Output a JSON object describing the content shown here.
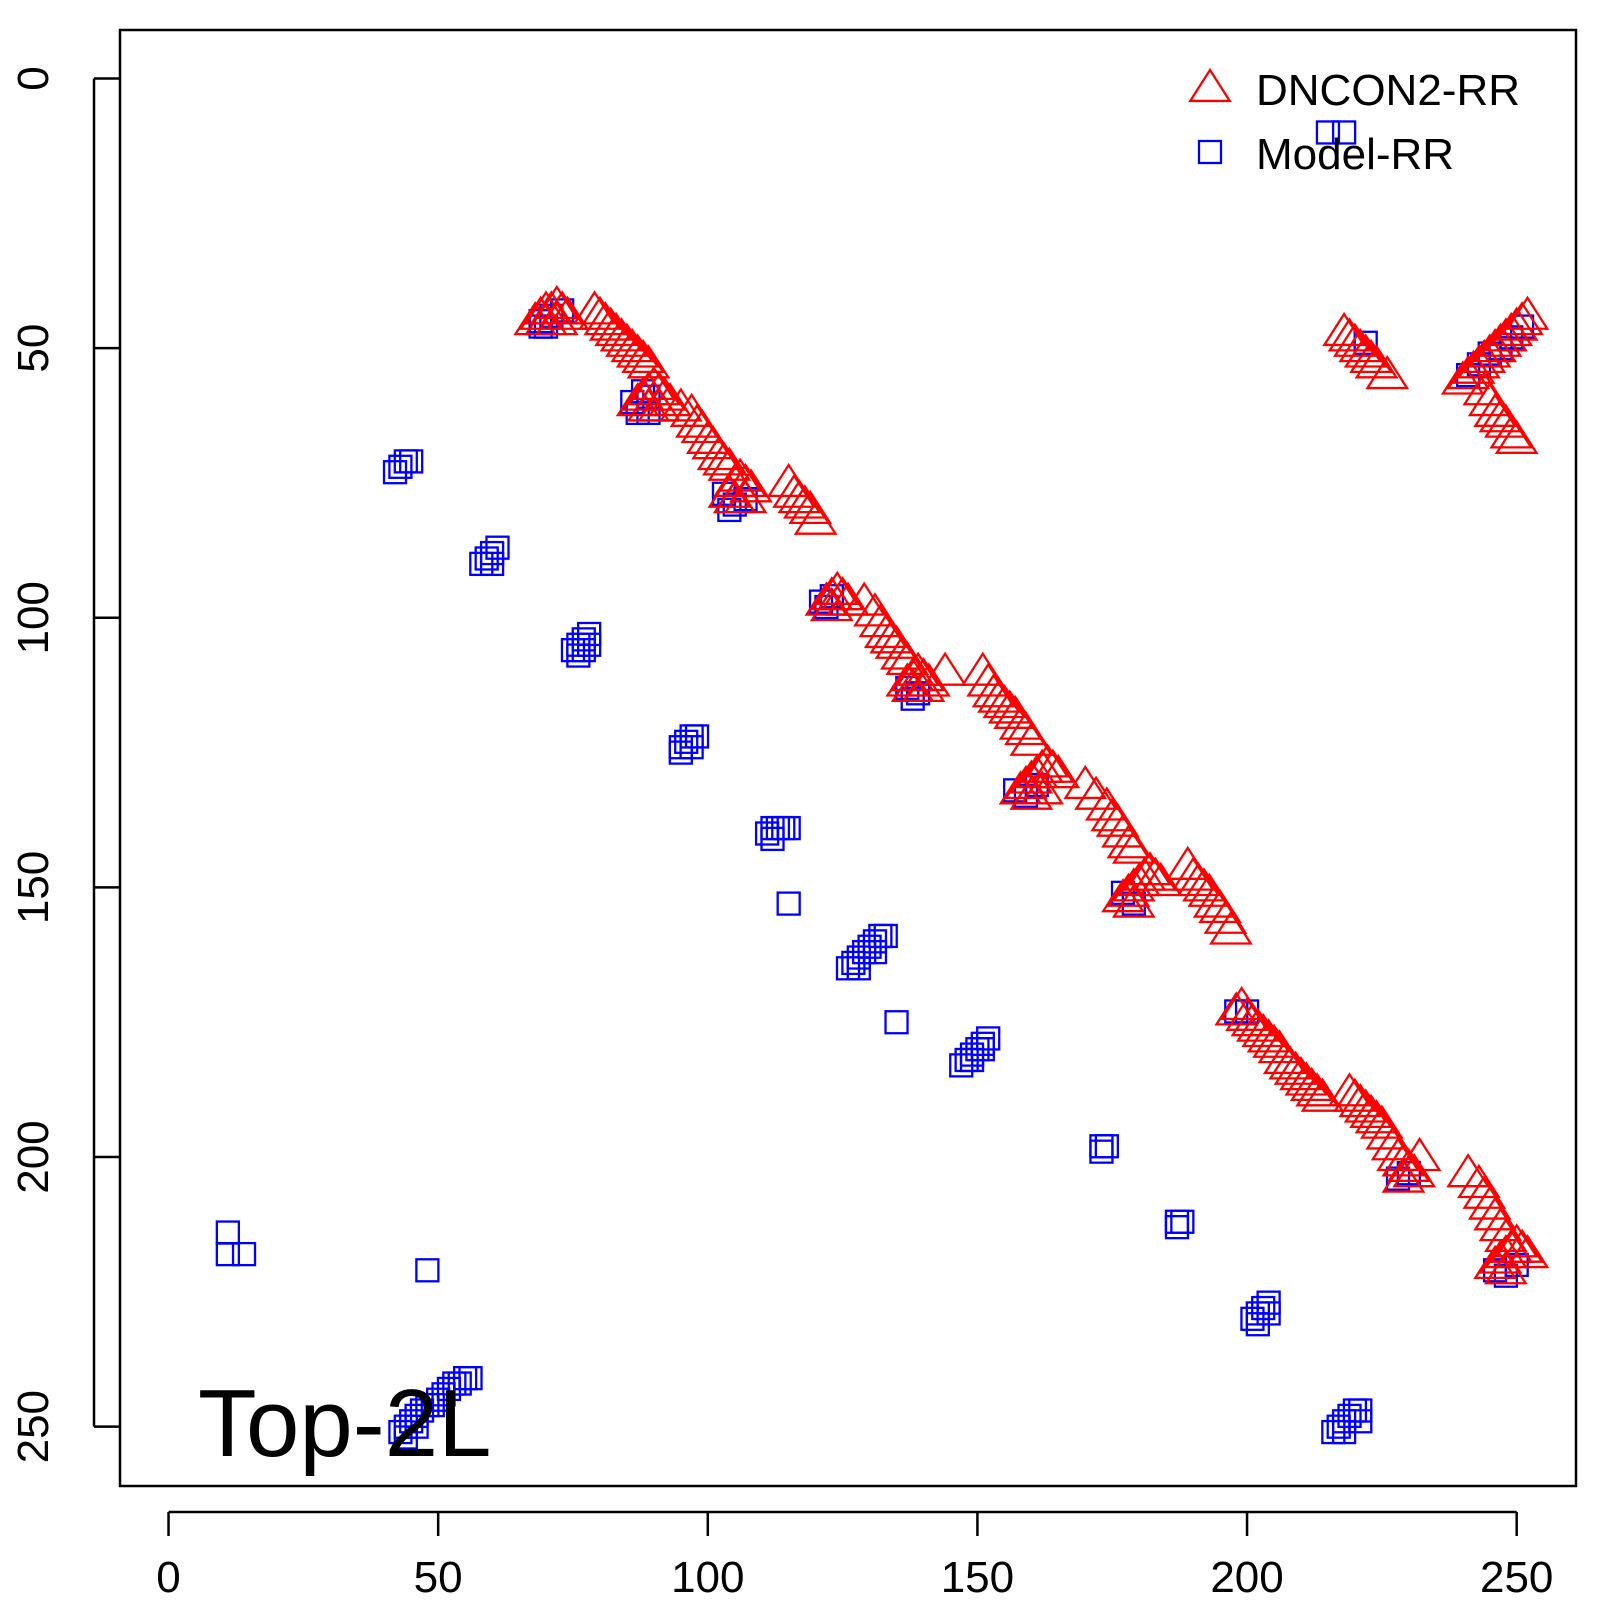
{
  "chart_data": {
    "type": "scatter",
    "title": "",
    "xlabel": "",
    "ylabel": "",
    "xlim": [
      -9,
      261
    ],
    "ylim": [
      -9,
      261
    ],
    "y_reversed": true,
    "xticks": [
      0,
      50,
      100,
      150,
      200,
      250
    ],
    "yticks": [
      0,
      50,
      100,
      150,
      200,
      250
    ],
    "annotation": "Top-2L",
    "legend": {
      "position": "top-right"
    },
    "series": [
      {
        "name": "DNCON2-RR",
        "marker": "triangle",
        "color": "#ff0000",
        "points": [
          [
            68,
            45
          ],
          [
            69,
            44
          ],
          [
            70,
            43
          ],
          [
            71,
            43
          ],
          [
            72,
            42
          ],
          [
            73,
            43
          ],
          [
            74,
            44
          ],
          [
            70,
            45
          ],
          [
            72,
            45
          ],
          [
            79,
            43
          ],
          [
            80,
            44
          ],
          [
            81,
            45
          ],
          [
            82,
            46
          ],
          [
            83,
            47
          ],
          [
            84,
            48
          ],
          [
            85,
            49
          ],
          [
            86,
            50
          ],
          [
            87,
            51
          ],
          [
            88,
            52
          ],
          [
            89,
            53
          ],
          [
            87,
            60
          ],
          [
            88,
            59
          ],
          [
            89,
            58
          ],
          [
            90,
            57
          ],
          [
            91,
            58
          ],
          [
            92,
            59
          ],
          [
            93,
            60
          ],
          [
            89,
            61
          ],
          [
            91,
            61
          ],
          [
            95,
            61
          ],
          [
            97,
            62
          ],
          [
            98,
            64
          ],
          [
            99,
            65
          ],
          [
            100,
            67
          ],
          [
            101,
            68
          ],
          [
            102,
            70
          ],
          [
            103,
            71
          ],
          [
            104,
            72
          ],
          [
            104,
            77
          ],
          [
            105,
            75
          ],
          [
            106,
            74
          ],
          [
            107,
            75
          ],
          [
            108,
            76
          ],
          [
            105,
            78
          ],
          [
            107,
            78
          ],
          [
            115,
            75
          ],
          [
            116,
            77
          ],
          [
            117,
            78
          ],
          [
            118,
            79
          ],
          [
            119,
            80
          ],
          [
            120,
            82
          ],
          [
            122,
            97
          ],
          [
            123,
            96
          ],
          [
            124,
            95
          ],
          [
            125,
            96
          ],
          [
            126,
            97
          ],
          [
            123,
            98
          ],
          [
            129,
            97
          ],
          [
            131,
            99
          ],
          [
            132,
            101
          ],
          [
            133,
            103
          ],
          [
            134,
            104
          ],
          [
            135,
            105
          ],
          [
            136,
            107
          ],
          [
            137,
            108
          ],
          [
            137,
            112
          ],
          [
            138,
            111
          ],
          [
            139,
            110
          ],
          [
            140,
            111
          ],
          [
            141,
            112
          ],
          [
            138,
            113
          ],
          [
            140,
            113
          ],
          [
            144,
            110
          ],
          [
            151,
            110
          ],
          [
            152,
            112
          ],
          [
            153,
            114
          ],
          [
            154,
            115
          ],
          [
            155,
            116
          ],
          [
            156,
            117
          ],
          [
            157,
            118
          ],
          [
            158,
            120
          ],
          [
            159,
            121
          ],
          [
            160,
            123
          ],
          [
            158,
            132
          ],
          [
            159,
            131
          ],
          [
            160,
            130
          ],
          [
            161,
            129
          ],
          [
            162,
            128
          ],
          [
            163,
            127
          ],
          [
            164,
            128
          ],
          [
            165,
            129
          ],
          [
            160,
            133
          ],
          [
            162,
            132
          ],
          [
            170,
            131
          ],
          [
            172,
            133
          ],
          [
            174,
            135
          ],
          [
            175,
            137
          ],
          [
            176,
            138
          ],
          [
            177,
            140
          ],
          [
            178,
            142
          ],
          [
            179,
            143
          ],
          [
            177,
            152
          ],
          [
            178,
            151
          ],
          [
            179,
            150
          ],
          [
            180,
            149
          ],
          [
            181,
            148
          ],
          [
            182,
            147
          ],
          [
            183,
            148
          ],
          [
            184,
            149
          ],
          [
            179,
            153
          ],
          [
            189,
            146
          ],
          [
            190,
            148
          ],
          [
            191,
            149
          ],
          [
            192,
            150
          ],
          [
            193,
            151
          ],
          [
            194,
            153
          ],
          [
            195,
            154
          ],
          [
            196,
            156
          ],
          [
            197,
            158
          ],
          [
            198,
            173
          ],
          [
            199,
            172
          ],
          [
            200,
            174
          ],
          [
            201,
            175
          ],
          [
            202,
            176
          ],
          [
            203,
            177
          ],
          [
            204,
            178
          ],
          [
            205,
            179
          ],
          [
            206,
            180
          ],
          [
            207,
            182
          ],
          [
            208,
            183
          ],
          [
            209,
            184
          ],
          [
            210,
            185
          ],
          [
            211,
            186
          ],
          [
            212,
            187
          ],
          [
            213,
            188
          ],
          [
            214,
            189
          ],
          [
            219,
            188
          ],
          [
            220,
            189
          ],
          [
            221,
            190
          ],
          [
            222,
            191
          ],
          [
            223,
            192
          ],
          [
            224,
            193
          ],
          [
            225,
            194
          ],
          [
            226,
            196
          ],
          [
            227,
            198
          ],
          [
            228,
            200
          ],
          [
            229,
            201
          ],
          [
            230,
            202
          ],
          [
            231,
            203
          ],
          [
            229,
            204
          ],
          [
            232,
            200
          ],
          [
            241,
            203
          ],
          [
            243,
            205
          ],
          [
            244,
            207
          ],
          [
            245,
            209
          ],
          [
            246,
            211
          ],
          [
            247,
            213
          ],
          [
            248,
            215
          ],
          [
            249,
            217
          ],
          [
            246,
            220
          ],
          [
            247,
            219
          ],
          [
            248,
            218
          ],
          [
            249,
            217
          ],
          [
            250,
            216
          ],
          [
            251,
            217
          ],
          [
            252,
            218
          ],
          [
            248,
            221
          ],
          [
            218,
            47
          ],
          [
            219,
            48
          ],
          [
            220,
            49
          ],
          [
            221,
            50
          ],
          [
            222,
            51
          ],
          [
            223,
            52
          ],
          [
            224,
            53
          ],
          [
            226,
            55
          ],
          [
            240,
            56
          ],
          [
            241,
            55
          ],
          [
            242,
            54
          ],
          [
            243,
            53
          ],
          [
            244,
            52
          ],
          [
            245,
            51
          ],
          [
            246,
            50
          ],
          [
            247,
            49
          ],
          [
            248,
            48
          ],
          [
            249,
            47
          ],
          [
            250,
            46
          ],
          [
            251,
            45
          ],
          [
            252,
            44
          ],
          [
            244,
            58
          ],
          [
            245,
            60
          ],
          [
            246,
            62
          ],
          [
            247,
            63
          ],
          [
            248,
            64
          ],
          [
            249,
            66
          ],
          [
            250,
            67
          ]
        ]
      },
      {
        "name": "Model-RR",
        "marker": "square",
        "color": "#0000ff",
        "points": [
          [
            69,
            45
          ],
          [
            71,
            44
          ],
          [
            73,
            43
          ],
          [
            70,
            46
          ],
          [
            86,
            60
          ],
          [
            88,
            58
          ],
          [
            87,
            62
          ],
          [
            89,
            62
          ],
          [
            103,
            77
          ],
          [
            105,
            79
          ],
          [
            107,
            78
          ],
          [
            104,
            80
          ],
          [
            43,
            72
          ],
          [
            42,
            73
          ],
          [
            44,
            71
          ],
          [
            45,
            71
          ],
          [
            59,
            89
          ],
          [
            60,
            88
          ],
          [
            61,
            87
          ],
          [
            58,
            90
          ],
          [
            60,
            90
          ],
          [
            75,
            106
          ],
          [
            76,
            105
          ],
          [
            77,
            104
          ],
          [
            78,
            103
          ],
          [
            76,
            107
          ],
          [
            77,
            106
          ],
          [
            78,
            105
          ],
          [
            95,
            124
          ],
          [
            96,
            123
          ],
          [
            97,
            122
          ],
          [
            95,
            125
          ],
          [
            97,
            124
          ],
          [
            98,
            122
          ],
          [
            111,
            140
          ],
          [
            112,
            139
          ],
          [
            113,
            139
          ],
          [
            114,
            139
          ],
          [
            112,
            141
          ],
          [
            115,
            139
          ],
          [
            115,
            153
          ],
          [
            126,
            165
          ],
          [
            127,
            164
          ],
          [
            128,
            163
          ],
          [
            129,
            162
          ],
          [
            130,
            161
          ],
          [
            131,
            160
          ],
          [
            132,
            159
          ],
          [
            133,
            159
          ],
          [
            128,
            165
          ],
          [
            131,
            162
          ],
          [
            135,
            175
          ],
          [
            147,
            183
          ],
          [
            148,
            182
          ],
          [
            149,
            181
          ],
          [
            150,
            180
          ],
          [
            151,
            179
          ],
          [
            152,
            178
          ],
          [
            151,
            180
          ],
          [
            149,
            182
          ],
          [
            173,
            198
          ],
          [
            174,
            198
          ],
          [
            173,
            199
          ],
          [
            187,
            212
          ],
          [
            188,
            212
          ],
          [
            187,
            213
          ],
          [
            201,
            230
          ],
          [
            202,
            229
          ],
          [
            203,
            228
          ],
          [
            204,
            227
          ],
          [
            202,
            231
          ],
          [
            204,
            229
          ],
          [
            216,
            251
          ],
          [
            217,
            250
          ],
          [
            218,
            249
          ],
          [
            219,
            248
          ],
          [
            220,
            247
          ],
          [
            221,
            247
          ],
          [
            218,
            251
          ],
          [
            221,
            249
          ],
          [
            11,
            214
          ],
          [
            11,
            218
          ],
          [
            14,
            218
          ],
          [
            48,
            221
          ],
          [
            43,
            251
          ],
          [
            44,
            250
          ],
          [
            45,
            249
          ],
          [
            46,
            248
          ],
          [
            47,
            247
          ],
          [
            48,
            246
          ],
          [
            49,
            246
          ],
          [
            50,
            245
          ],
          [
            51,
            244
          ],
          [
            52,
            243
          ],
          [
            53,
            242
          ],
          [
            54,
            242
          ],
          [
            55,
            241
          ],
          [
            56,
            241
          ],
          [
            44,
            252
          ],
          [
            46,
            250
          ],
          [
            121,
            97
          ],
          [
            123,
            96
          ],
          [
            122,
            98
          ],
          [
            137,
            113
          ],
          [
            139,
            114
          ],
          [
            138,
            115
          ],
          [
            157,
            132
          ],
          [
            159,
            133
          ],
          [
            161,
            131
          ],
          [
            177,
            151
          ],
          [
            179,
            153
          ],
          [
            198,
            173
          ],
          [
            200,
            173
          ],
          [
            230,
            203
          ],
          [
            228,
            204
          ],
          [
            246,
            221
          ],
          [
            248,
            222
          ],
          [
            250,
            220
          ],
          [
            215,
            10
          ],
          [
            218,
            10
          ],
          [
            69,
            46
          ],
          [
            89,
            59
          ],
          [
            222,
            49
          ],
          [
            241,
            55
          ],
          [
            243,
            53
          ],
          [
            245,
            51
          ],
          [
            247,
            50
          ],
          [
            249,
            48
          ],
          [
            251,
            46
          ]
        ]
      }
    ]
  }
}
